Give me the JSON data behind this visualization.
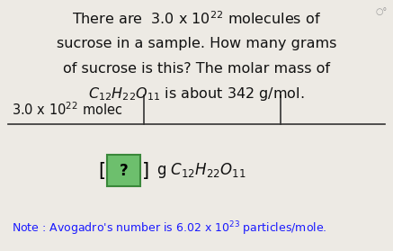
{
  "bg_color": "#edeae4",
  "main_text_color": "#111111",
  "note_color": "#1a1aff",
  "fraction_line_color": "#333333",
  "question_box_color": "#6dbf6d",
  "question_box_border": "#3a883a",
  "fig_width": 4.37,
  "fig_height": 2.79,
  "dpi": 100,
  "line1": "There are  3.0 x 10$^{22}$ molecules of",
  "line2": "sucrose in a sample. How many grams",
  "line3": "of sucrose is this? The molar mass of",
  "line4": "$C_{12}H_{22}O_{11}$ is about 342 g/mol.",
  "frac_num": "3.0 x 10$^{22}$ molec",
  "result_text": "g $C_{12}H_{22}O_{11}$",
  "note_line": "Note : Avogadro’s number is 6.02 x 10$^{23}$ particles/mole."
}
